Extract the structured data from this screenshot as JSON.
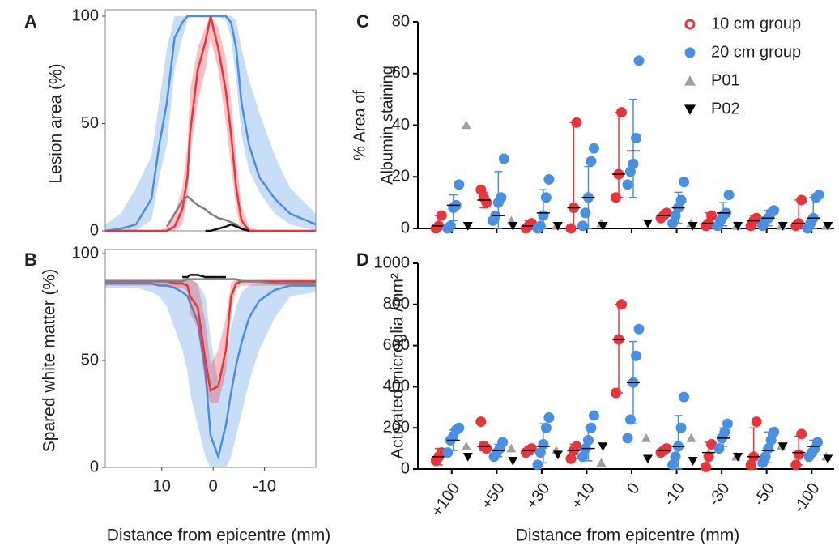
{
  "chart_data": [
    {
      "type": "line",
      "panel": "A",
      "ylabel": "Lesion area (%)",
      "x": [
        21,
        18,
        15,
        12,
        10.5,
        9,
        7.5,
        6,
        5,
        4.5,
        3,
        1.5,
        0.5,
        -1,
        -2.5,
        -3.5,
        -4.5,
        -5.5,
        -7,
        -9,
        -12,
        -15,
        -20
      ],
      "xlim": [
        21,
        -20
      ],
      "ylim": [
        0,
        100
      ],
      "yticks": [
        0,
        50,
        100
      ],
      "series": [
        {
          "color": "#4a90e2",
          "values": [
            0,
            1,
            3,
            15,
            40,
            60,
            90,
            97,
            100,
            100,
            100,
            100,
            100,
            100,
            100,
            97,
            85,
            60,
            40,
            25,
            15,
            8,
            3
          ],
          "lower": [
            0,
            0,
            0,
            5,
            25,
            40,
            75,
            90,
            98,
            100,
            100,
            100,
            100,
            100,
            98,
            90,
            70,
            45,
            28,
            18,
            8,
            3,
            0
          ],
          "upper": [
            3,
            8,
            20,
            35,
            60,
            85,
            100,
            100,
            100,
            100,
            100,
            100,
            100,
            100,
            100,
            100,
            98,
            85,
            70,
            55,
            35,
            20,
            8
          ]
        },
        {
          "color": "#e8343a",
          "values": [
            0,
            0,
            0,
            0,
            0,
            0,
            2,
            10,
            25,
            45,
            75,
            88,
            100,
            85,
            65,
            45,
            20,
            5,
            0,
            0,
            0,
            0,
            0
          ],
          "lower": [
            0,
            0,
            0,
            0,
            0,
            0,
            0,
            3,
            15,
            35,
            60,
            75,
            90,
            75,
            50,
            30,
            10,
            0,
            0,
            0,
            0,
            0,
            0
          ],
          "upper": [
            0,
            0,
            0,
            0,
            0,
            2,
            8,
            20,
            40,
            65,
            85,
            95,
            100,
            95,
            80,
            60,
            35,
            12,
            2,
            0,
            0,
            0,
            0
          ]
        },
        {
          "color": "#7f7f7f",
          "values": [
            null,
            null,
            null,
            null,
            null,
            2,
            8,
            14,
            16,
            15,
            12,
            10,
            8,
            6,
            5,
            4,
            3,
            1,
            0,
            null,
            null,
            null,
            null
          ]
        },
        {
          "color": "#111111",
          "values": [
            null,
            null,
            null,
            null,
            null,
            null,
            null,
            null,
            null,
            null,
            null,
            0,
            0,
            1,
            2,
            3,
            2,
            1,
            0,
            null,
            null,
            null,
            null
          ]
        }
      ]
    },
    {
      "type": "line",
      "panel": "B",
      "ylabel": "Spared white matter (%)",
      "xlabel": "Distance from epicentre (mm)",
      "x": [
        21,
        18,
        15,
        12,
        10.5,
        9,
        7.5,
        6,
        5,
        4.5,
        3,
        1.5,
        0.5,
        -1,
        -2.5,
        -3.5,
        -4.5,
        -5.5,
        -7,
        -9,
        -12,
        -15,
        -20
      ],
      "xlim": [
        21,
        -20
      ],
      "xticks": [
        10,
        0,
        -10
      ],
      "ylim": [
        0,
        100
      ],
      "yticks": [
        0,
        50,
        100
      ],
      "series": [
        {
          "color": "#4a90e2",
          "values": [
            86,
            86,
            86,
            86,
            85,
            85,
            84,
            82,
            80,
            77,
            68,
            45,
            15,
            5,
            20,
            35,
            48,
            58,
            70,
            78,
            83,
            85,
            85
          ],
          "lower": [
            84,
            84,
            84,
            82,
            80,
            75,
            65,
            55,
            45,
            35,
            20,
            5,
            0,
            0,
            0,
            5,
            15,
            25,
            40,
            55,
            70,
            80,
            82
          ],
          "upper": [
            88,
            88,
            88,
            88,
            88,
            88,
            88,
            88,
            88,
            88,
            86,
            80,
            60,
            40,
            50,
            65,
            75,
            82,
            85,
            87,
            87,
            87,
            87
          ]
        },
        {
          "color": "#e8343a",
          "values": [
            87,
            87,
            87,
            87,
            87,
            87,
            86,
            86,
            85,
            80,
            75,
            50,
            36,
            38,
            55,
            80,
            86,
            87,
            87,
            87,
            87,
            87,
            87
          ],
          "lower": [
            85,
            85,
            85,
            85,
            85,
            85,
            84,
            84,
            82,
            72,
            65,
            38,
            30,
            30,
            45,
            72,
            84,
            85,
            85,
            85,
            85,
            85,
            85
          ],
          "upper": [
            88,
            88,
            88,
            88,
            88,
            88,
            88,
            88,
            88,
            88,
            86,
            68,
            48,
            55,
            70,
            86,
            88,
            88,
            88,
            88,
            88,
            88,
            88
          ]
        },
        {
          "color": "#7f7f7f",
          "values": [
            87,
            87,
            87,
            87,
            87,
            87,
            87,
            87,
            88,
            88,
            88,
            88,
            88,
            88,
            88,
            88,
            88,
            87,
            87,
            87,
            86,
            86,
            86
          ]
        },
        {
          "color": "#111111",
          "values": [
            null,
            null,
            null,
            null,
            null,
            null,
            null,
            89,
            89,
            90,
            90,
            89,
            89,
            89,
            89,
            null,
            null,
            null,
            null,
            null,
            null,
            null,
            null
          ]
        }
      ]
    },
    {
      "type": "dot",
      "panel": "C",
      "ylabel": [
        "% Area of",
        "Albumin staining"
      ],
      "categories": [
        "+100",
        "+50",
        "+30",
        "+10",
        "0",
        "-10",
        "-30",
        "-50",
        "-100"
      ],
      "ylim": [
        0,
        80
      ],
      "yticks": [
        0,
        20,
        40,
        60,
        80
      ],
      "legend": "top-right",
      "series": [
        {
          "name": "10 cm group",
          "color": "#e8343a",
          "marker": "circle",
          "points": [
            [
              0,
              1,
              5
            ],
            [
              15,
              12,
              10
            ],
            [
              0,
              1,
              2
            ],
            [
              0,
              8,
              41
            ],
            [
              12,
              21,
              45
            ],
            [
              4,
              5,
              6
            ],
            [
              1,
              2,
              5
            ],
            [
              1,
              3,
              4
            ],
            [
              1,
              2,
              11
            ]
          ],
          "center": [
            1,
            11,
            1,
            8,
            21,
            5,
            2,
            3,
            2
          ],
          "lower": [
            0,
            8,
            0,
            0,
            12,
            4,
            0,
            1,
            0
          ],
          "upper": [
            5,
            14,
            3,
            41,
            45,
            6,
            6,
            5,
            11
          ]
        },
        {
          "name": "20 cm group",
          "color": "#4a90e2",
          "marker": "disc",
          "points": [
            [
              0,
              1,
              8,
              9,
              17
            ],
            [
              3,
              5,
              10,
              12,
              27
            ],
            [
              0,
              1,
              5,
              12,
              19
            ],
            [
              1,
              6,
              12,
              26,
              31
            ],
            [
              17,
              22,
              25,
              35,
              65
            ],
            [
              2,
              5,
              8,
              11,
              18
            ],
            [
              1,
              3,
              5,
              6,
              13
            ],
            [
              1,
              3,
              4,
              6,
              7
            ],
            [
              0,
              2,
              4,
              12,
              13
            ]
          ],
          "center": [
            9,
            5,
            6,
            12,
            30,
            8,
            6,
            4,
            4
          ],
          "lower": [
            3,
            0,
            0,
            0,
            12,
            2,
            1,
            1,
            0
          ],
          "upper": [
            13,
            22,
            15,
            24,
            50,
            14,
            10,
            7,
            12
          ]
        },
        {
          "name": "P01",
          "color": "#a0a0a0",
          "marker": "triangle-up",
          "values": [
            40,
            3,
            1,
            2,
            null,
            2,
            1,
            1,
            1
          ]
        },
        {
          "name": "P02",
          "color": "#000000",
          "marker": "triangle-down",
          "values": [
            1,
            1,
            1,
            1,
            2,
            1,
            1,
            1,
            1
          ]
        }
      ]
    },
    {
      "type": "dot",
      "panel": "D",
      "ylabel": "Activated microglia /mm²",
      "xlabel": "Distance from epicentre (mm)",
      "categories": [
        "+100",
        "+50",
        "+30",
        "+10",
        "0",
        "-10",
        "-30",
        "-50",
        "-100"
      ],
      "ylim": [
        0,
        1000
      ],
      "yticks": [
        0,
        200,
        400,
        600,
        800,
        1000
      ],
      "series": [
        {
          "name": "10 cm group",
          "color": "#e8343a",
          "marker": "circle",
          "points": [
            [
              40,
              60,
              80
            ],
            [
              230,
              110,
              100
            ],
            [
              80,
              90,
              100
            ],
            [
              50,
              90,
              110
            ],
            [
              370,
              630,
              800
            ],
            [
              80,
              90,
              100
            ],
            [
              10,
              60,
              120
            ],
            [
              20,
              60,
              230
            ],
            [
              20,
              70,
              170
            ]
          ],
          "center": [
            60,
            110,
            90,
            90,
            630,
            90,
            80,
            60,
            80
          ],
          "lower": [
            20,
            90,
            70,
            50,
            370,
            80,
            10,
            0,
            20
          ],
          "upper": [
            100,
            130,
            110,
            120,
            800,
            100,
            130,
            200,
            160
          ]
        },
        {
          "name": "20 cm group",
          "color": "#4a90e2",
          "marker": "disc",
          "points": [
            [
              80,
              140,
              160,
              190,
              200
            ],
            [
              60,
              80,
              100,
              130
            ],
            [
              20,
              80,
              120,
              200,
              250
            ],
            [
              60,
              100,
              140,
              200,
              260
            ],
            [
              150,
              240,
              420,
              550,
              680
            ],
            [
              20,
              60,
              110,
              200,
              350
            ],
            [
              100,
              150,
              180,
              220
            ],
            [
              30,
              60,
              100,
              140,
              180
            ],
            [
              60,
              80,
              100,
              130
            ]
          ],
          "center": [
            140,
            90,
            110,
            100,
            420,
            110,
            150,
            90,
            110
          ],
          "lower": [
            90,
            60,
            30,
            40,
            220,
            0,
            110,
            30,
            70
          ],
          "upper": [
            190,
            120,
            220,
            200,
            620,
            260,
            200,
            180,
            140
          ]
        },
        {
          "name": "P01",
          "color": "#a0a0a0",
          "marker": "triangle-up",
          "values": [
            110,
            100,
            90,
            30,
            150,
            150,
            60,
            110,
            60
          ]
        },
        {
          "name": "P02",
          "color": "#000000",
          "marker": "triangle-down",
          "values": [
            60,
            40,
            70,
            110,
            50,
            40,
            60,
            110,
            50
          ]
        }
      ]
    }
  ]
}
